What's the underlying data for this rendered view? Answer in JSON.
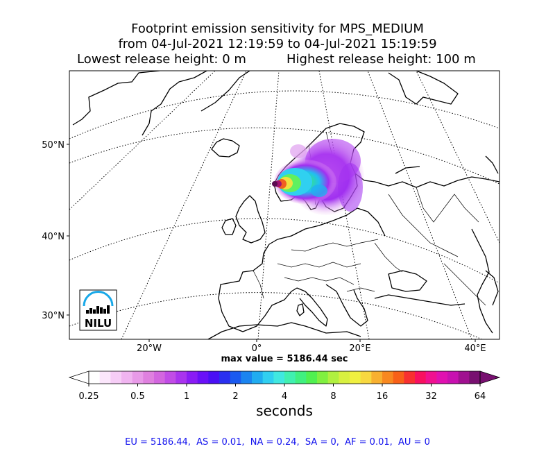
{
  "title": {
    "line1": "Footprint emission sensitivity for MPS_MEDIUM",
    "line2": "from 04-Jul-2021 12:19:59 to 04-Jul-2021 15:19:59",
    "line3_left": "Lowest release height: 0 m",
    "line3_right": "Highest release height: 100 m"
  },
  "map": {
    "lat_labels": [
      "50°N",
      "40°N",
      "30°N"
    ],
    "lon_labels": [
      "20°W",
      "0°",
      "20°E",
      "40°E"
    ],
    "logo": {
      "text": "NILU"
    }
  },
  "max_value": "max value = 5186.44 sec",
  "colorbar": {
    "tick_labels": [
      "0.25",
      "0.5",
      "1",
      "2",
      "4",
      "8",
      "16",
      "32",
      "64"
    ],
    "label": "seconds",
    "colors": [
      "#ffffff",
      "#fbe6fb",
      "#f6cdf6",
      "#f0b4f0",
      "#e89ae8",
      "#df80df",
      "#d366df",
      "#c14ce6",
      "#a933ee",
      "#8a1cf5",
      "#6a10f8",
      "#4a10f5",
      "#2a30f0",
      "#1a5af0",
      "#1a84f0",
      "#20acf0",
      "#30cff0",
      "#40e8e0",
      "#40f0b0",
      "#40f080",
      "#50f050",
      "#80f040",
      "#b0f040",
      "#d8f040",
      "#f0f040",
      "#f8d840",
      "#f8b030",
      "#f88820",
      "#f86018",
      "#f83030",
      "#f81060",
      "#f01090",
      "#e010b0",
      "#c810b0",
      "#a01090",
      "#781070"
    ]
  },
  "footer": "EU = 5186.44,  AS = 0.01,  NA = 0.24,  SA = 0,  AF = 0.01,  AU = 0"
}
